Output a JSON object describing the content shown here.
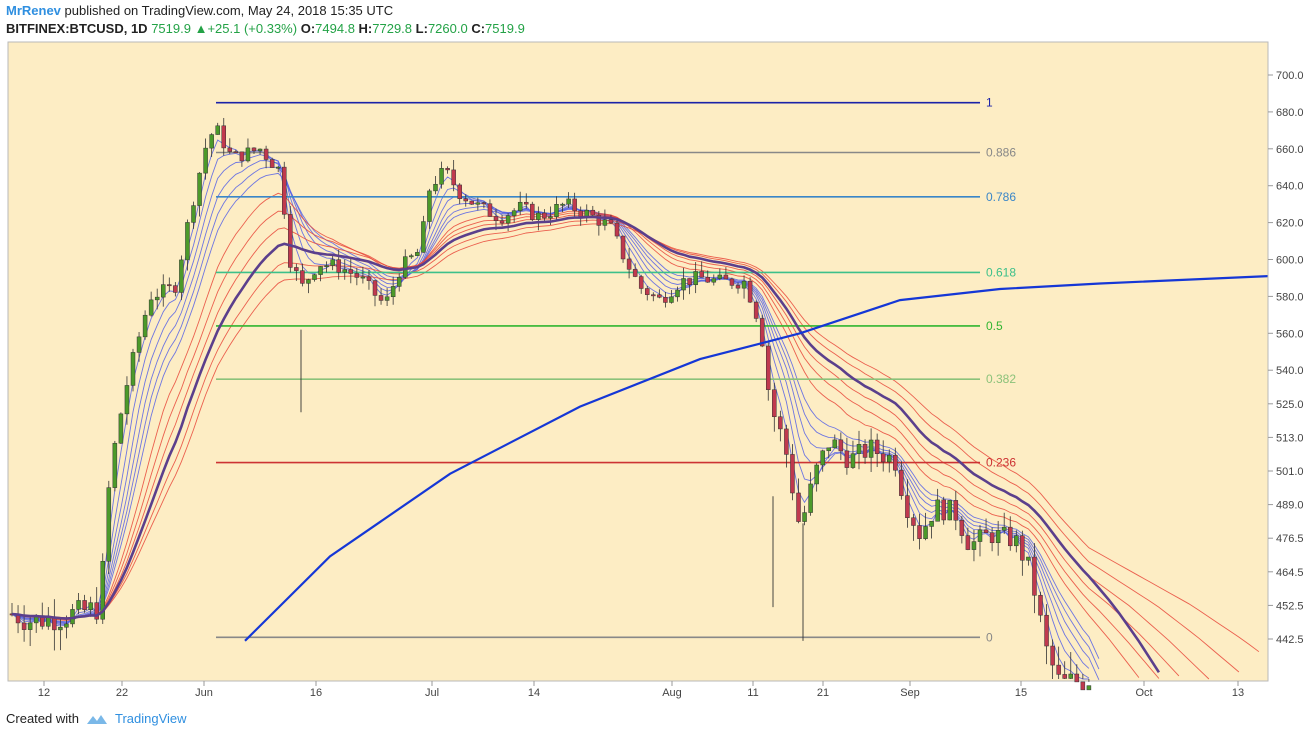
{
  "header": {
    "author": "MrRenev",
    "published": "published on TradingView.com, May 24, 2018 15:35 UTC",
    "symbol": "BITFINEX:BTCUSD, 1D",
    "last": "7519.9",
    "change": "+25.1 (+0.33%)",
    "o_label": "O:",
    "o": "7494.8",
    "h_label": "H:",
    "h": "7729.8",
    "l_label": "L:",
    "l": "7260.0",
    "c_label": "C:",
    "c": "7519.9"
  },
  "footer": {
    "created": "Created with",
    "brand": "TradingView"
  },
  "colors": {
    "background": "#fdedc4",
    "bull": "#4c9a2a",
    "bear": "#c0394e",
    "ma_slow": "#5b3f8c",
    "ma_long": "#1537d6",
    "ribbon_fast": "#5560e6",
    "ribbon_slow": "#e8473a"
  },
  "chart_data": {
    "type": "candlestick",
    "x_ticks": [
      "12",
      "22",
      "Jun",
      "16",
      "Jul",
      "14",
      "Aug",
      "11",
      "21",
      "Sep",
      "15",
      "Oct",
      "13"
    ],
    "y_ticks": [
      "700.0",
      "680.0",
      "660.0",
      "640.0",
      "620.0",
      "600.0",
      "580.0",
      "560.0",
      "540.0",
      "525.0",
      "513.0",
      "501.0",
      "489.0",
      "476.5",
      "464.5",
      "452.5",
      "442.5"
    ],
    "fib_levels": [
      {
        "label": "1",
        "value": 685,
        "color": "#1b22a8"
      },
      {
        "label": "0.886",
        "value": 658,
        "color": "#888888"
      },
      {
        "label": "0.786",
        "value": 634,
        "color": "#3a86c8"
      },
      {
        "label": "0.618",
        "value": 593,
        "color": "#3cc08a"
      },
      {
        "label": "0.5",
        "value": 564,
        "color": "#30b530"
      },
      {
        "label": "0.382",
        "value": 536,
        "color": "#8bc27a"
      },
      {
        "label": "0.236",
        "value": 504,
        "color": "#cc3333"
      },
      {
        "label": "0",
        "value": 443,
        "color": "#888888"
      }
    ]
  }
}
